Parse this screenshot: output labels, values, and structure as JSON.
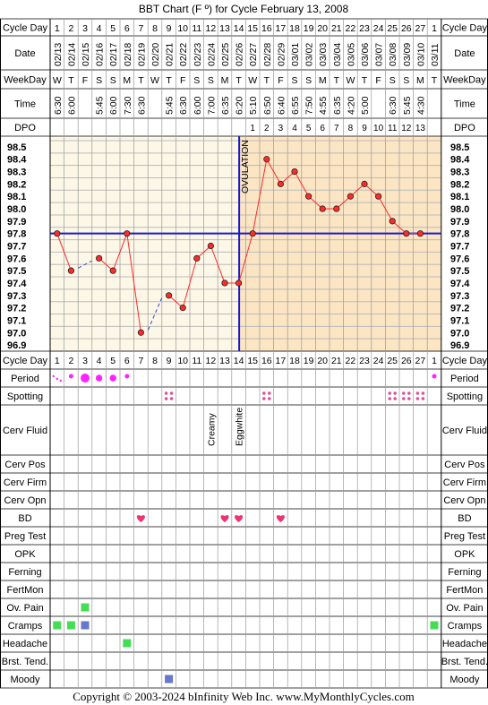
{
  "title": "BBT Chart (F º) for Cycle February 13, 2008",
  "row_labels": {
    "cycle_day": "Cycle Day",
    "date": "Date",
    "weekday": "WeekDay",
    "time": "Time",
    "dpo": "DPO",
    "period": "Period",
    "spotting": "Spotting",
    "cerv_fluid": "Cerv Fluid",
    "cerv_pos": "Cerv Pos",
    "cerv_firm": "Cerv Firm",
    "cerv_opn": "Cerv Opn",
    "bd": "BD",
    "preg_test": "Preg Test",
    "opk": "OPK",
    "ferning": "Ferning",
    "fertmon": "FertMon",
    "ov_pain": "Ov. Pain",
    "cramps": "Cramps",
    "headache": "Headache",
    "brst_tend": "Brst. Tend.",
    "moody": "Moody"
  },
  "ovulation_label": "OVULATION",
  "footer": "Copyright © 2003-2024 bInfinity Web Inc.    www.MyMonthlyCycles.com",
  "colors": {
    "grid": "#bbbbbb",
    "pre_ov_bg": "#fcf7e6",
    "post_ov_bg": "#fbe5c3",
    "temp_line": "#ff2a2a",
    "cover_line": "#1a1acc",
    "missing_line": "#3344cc",
    "period": "#ff22ff",
    "spotting": "#e0509a",
    "bd_heart": "#ee3377",
    "green": "#44dd55",
    "blue": "#6677cc"
  },
  "chart_data": {
    "type": "line",
    "cycle_days": [
      "1",
      "2",
      "3",
      "4",
      "5",
      "6",
      "7",
      "8",
      "9",
      "10",
      "11",
      "12",
      "13",
      "14",
      "15",
      "16",
      "17",
      "18",
      "19",
      "20",
      "21",
      "22",
      "23",
      "24",
      "25",
      "26",
      "27",
      "1"
    ],
    "dates": [
      "02/13",
      "02/14",
      "02/15",
      "02/16",
      "02/17",
      "02/18",
      "02/19",
      "02/20",
      "02/21",
      "02/22",
      "02/23",
      "02/24",
      "02/25",
      "02/26",
      "02/27",
      "02/28",
      "02/29",
      "03/01",
      "03/02",
      "03/03",
      "03/04",
      "03/05",
      "03/06",
      "03/07",
      "03/08",
      "03/09",
      "03/10",
      "03/11"
    ],
    "weekdays": [
      "W",
      "T",
      "F",
      "S",
      "S",
      "M",
      "T",
      "W",
      "T",
      "F",
      "S",
      "S",
      "M",
      "T",
      "W",
      "T",
      "F",
      "S",
      "S",
      "M",
      "T",
      "W",
      "T",
      "F",
      "S",
      "S",
      "M",
      "T"
    ],
    "times": [
      "6:30",
      "6:00",
      "",
      "5:45",
      "6:00",
      "7:30",
      "6:30",
      "",
      "5:45",
      "6:30",
      "6:00",
      "7:00",
      "6:35",
      "6:20",
      "5:10",
      "6:50",
      "6:40",
      "6:55",
      "7:50",
      "4:55",
      "6:35",
      "4:20",
      "5:00",
      "",
      "6:30",
      "5:45",
      "4:30",
      ""
    ],
    "dpo": [
      "",
      "",
      "",
      "",
      "",
      "",
      "",
      "",
      "",
      "",
      "",
      "",
      "",
      "",
      "1",
      "2",
      "3",
      "4",
      "5",
      "6",
      "7",
      "8",
      "9",
      "10",
      "11",
      "12",
      "13",
      ""
    ],
    "temperatures": [
      97.8,
      97.5,
      null,
      97.6,
      97.5,
      97.8,
      97.0,
      null,
      97.3,
      97.2,
      97.6,
      97.7,
      97.4,
      97.4,
      97.8,
      98.4,
      98.2,
      98.3,
      98.1,
      98.0,
      98.0,
      98.1,
      98.2,
      98.1,
      97.9,
      97.8,
      97.8,
      null
    ],
    "y_ticks": [
      "98.5",
      "98.4",
      "98.3",
      "98.2",
      "98.1",
      "98.0",
      "97.9",
      "97.8",
      "97.7",
      "97.6",
      "97.5",
      "97.4",
      "97.3",
      "97.2",
      "97.1",
      "97.0",
      "96.9"
    ],
    "ylim": [
      96.9,
      98.5
    ],
    "coverline": 97.8,
    "ovulation_after_column": 14,
    "cerv_fluid_notes": [
      {
        "column": 12,
        "text": "Creamy"
      },
      {
        "column": 14,
        "text": "Eggwhite"
      }
    ],
    "period": [
      {
        "column": 1,
        "size": "spot"
      },
      {
        "column": 2,
        "size": "small"
      },
      {
        "column": 3,
        "size": "large"
      },
      {
        "column": 4,
        "size": "medium"
      },
      {
        "column": 5,
        "size": "medium"
      },
      {
        "column": 6,
        "size": "small"
      },
      {
        "column": 28,
        "size": "small"
      }
    ],
    "spotting_columns": [
      9,
      16,
      25,
      26,
      27
    ],
    "bd_columns": [
      7,
      13,
      14,
      17
    ],
    "ov_pain_columns": [
      3
    ],
    "cramps": [
      {
        "column": 1,
        "color": "green"
      },
      {
        "column": 2,
        "color": "green"
      },
      {
        "column": 3,
        "color": "blue"
      },
      {
        "column": 28,
        "color": "green"
      }
    ],
    "headache_columns": [
      6
    ],
    "moody": [
      {
        "column": 9,
        "color": "blue"
      }
    ]
  }
}
